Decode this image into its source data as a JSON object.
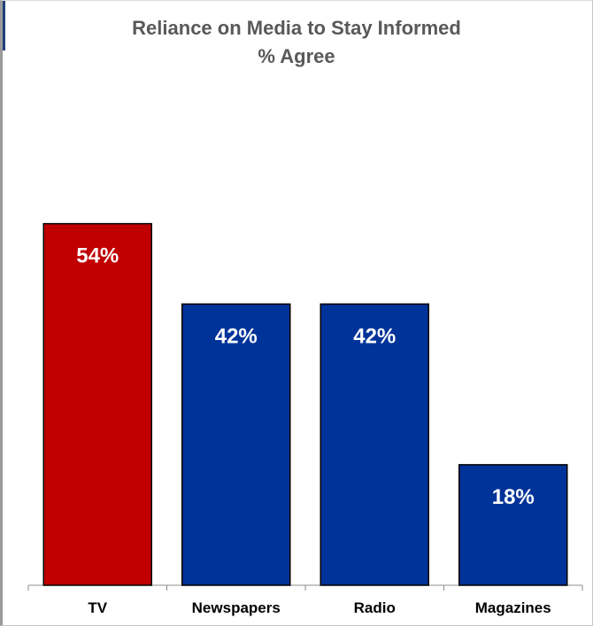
{
  "chart_data": {
    "type": "bar",
    "title": "Reliance on Media to Stay Informed",
    "subtitle": "% Agree",
    "categories": [
      "TV",
      "Newspapers",
      "Radio",
      "Magazines"
    ],
    "values": [
      54,
      42,
      42,
      18
    ],
    "data_labels": [
      "54%",
      "42%",
      "42%",
      "18%"
    ],
    "colors": [
      "#c00000",
      "#003399",
      "#003399",
      "#003399"
    ],
    "ylim": [
      0,
      80
    ],
    "grid": false,
    "legend": "none"
  }
}
